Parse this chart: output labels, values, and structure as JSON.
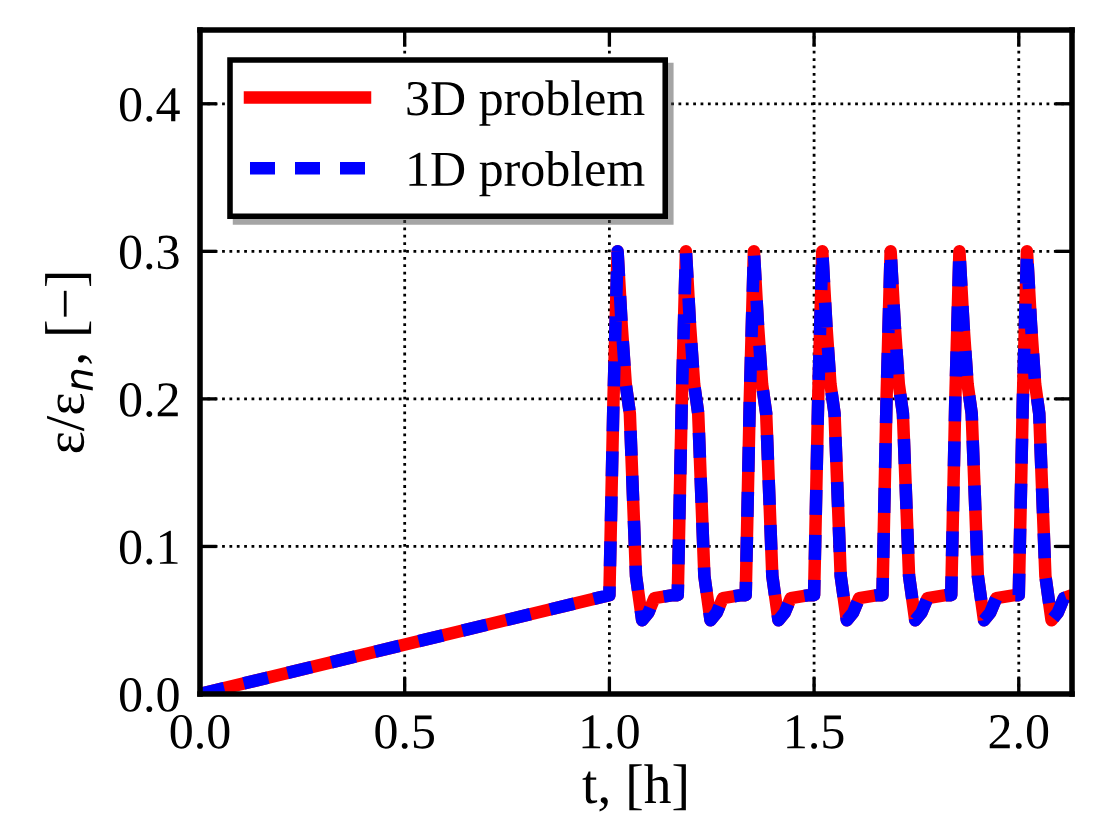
{
  "chart_data": {
    "type": "line",
    "xlabel": "t, [h]",
    "ylabel": "ε/ε$_{n}$, [−]",
    "x": [
      0,
      1.0,
      1.01,
      1.02,
      1.03,
      1.04,
      1.05,
      1.065,
      1.08,
      1.095,
      1.11,
      1.155,
      1.167,
      1.177,
      1.187,
      1.197,
      1.207,
      1.217,
      1.232,
      1.247,
      1.262,
      1.277,
      1.322,
      1.333,
      1.343,
      1.353,
      1.363,
      1.373,
      1.383,
      1.398,
      1.413,
      1.428,
      1.443,
      1.488,
      1.5,
      1.51,
      1.52,
      1.53,
      1.54,
      1.55,
      1.565,
      1.58,
      1.595,
      1.61,
      1.655,
      1.667,
      1.677,
      1.687,
      1.697,
      1.707,
      1.717,
      1.732,
      1.747,
      1.762,
      1.777,
      1.822,
      1.835,
      1.845,
      1.855,
      1.865,
      1.875,
      1.885,
      1.9,
      1.915,
      1.93,
      1.945,
      1.99,
      2.0,
      2.01,
      2.02,
      2.03,
      2.04,
      2.05,
      2.065,
      2.08,
      2.095,
      2.11,
      2.13
    ],
    "series": [
      {
        "name": "3D problem",
        "color": "#ff0000",
        "line_style": "solid",
        "values": [
          0,
          0.067,
          0.2,
          0.3,
          0.25,
          0.21,
          0.19,
          0.08,
          0.05,
          0.055,
          0.065,
          0.067,
          0.067,
          0.2,
          0.3,
          0.25,
          0.21,
          0.19,
          0.08,
          0.05,
          0.055,
          0.065,
          0.067,
          0.067,
          0.2,
          0.3,
          0.25,
          0.21,
          0.19,
          0.08,
          0.05,
          0.055,
          0.065,
          0.067,
          0.067,
          0.2,
          0.3,
          0.25,
          0.21,
          0.19,
          0.08,
          0.05,
          0.055,
          0.065,
          0.067,
          0.067,
          0.2,
          0.3,
          0.25,
          0.21,
          0.19,
          0.08,
          0.05,
          0.055,
          0.065,
          0.067,
          0.067,
          0.2,
          0.3,
          0.25,
          0.21,
          0.19,
          0.08,
          0.05,
          0.055,
          0.065,
          0.067,
          0.067,
          0.2,
          0.3,
          0.25,
          0.21,
          0.19,
          0.08,
          0.05,
          0.055,
          0.065,
          0.067
        ]
      },
      {
        "name": "1D problem",
        "color": "#0000ff",
        "line_style": "dashed",
        "values": [
          0,
          0.067,
          0.2,
          0.3,
          0.25,
          0.21,
          0.19,
          0.08,
          0.05,
          0.055,
          0.065,
          0.067,
          0.067,
          0.2,
          0.3,
          0.25,
          0.21,
          0.19,
          0.08,
          0.05,
          0.055,
          0.065,
          0.067,
          0.067,
          0.2,
          0.3,
          0.25,
          0.21,
          0.19,
          0.08,
          0.05,
          0.055,
          0.065,
          0.067,
          0.067,
          0.2,
          0.3,
          0.25,
          0.21,
          0.19,
          0.08,
          0.05,
          0.055,
          0.065,
          0.067,
          0.067,
          0.2,
          0.3,
          0.25,
          0.21,
          0.19,
          0.08,
          0.05,
          0.055,
          0.065,
          0.067,
          0.067,
          0.2,
          0.3,
          0.25,
          0.21,
          0.19,
          0.08,
          0.05,
          0.055,
          0.065,
          0.067,
          0.067,
          0.2,
          0.3,
          0.25,
          0.21,
          0.19,
          0.08,
          0.05,
          0.055,
          0.065,
          0.067
        ]
      }
    ],
    "xlim": [
      0,
      2.13
    ],
    "ylim": [
      0,
      0.45
    ],
    "xticks": [
      {
        "value": 0,
        "label": "0.0"
      },
      0.5,
      {
        "value": 1,
        "label": "1.0"
      },
      1.5,
      {
        "value": 2,
        "label": "2.0"
      }
    ],
    "yticks": [
      {
        "value": 0,
        "label": "0.0"
      },
      0.1,
      0.2,
      0.3,
      0.4
    ],
    "grid": true,
    "legend": "top left",
    "marker": "none"
  }
}
